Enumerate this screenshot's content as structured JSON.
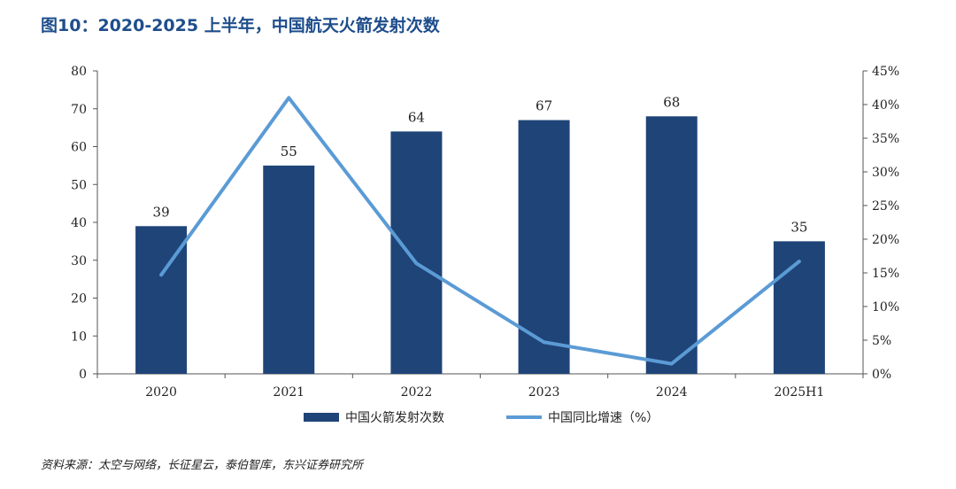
{
  "header": {
    "title": "图10：2020-2025 上半年，中国航天火箭发射次数"
  },
  "footer": {
    "source": "资料来源：太空与网络，长征星云，泰伯智库，东兴证券研究所"
  },
  "colors": {
    "bar": "#1f4478",
    "line": "#5b9bd5",
    "axis": "#555555"
  },
  "chart_data": {
    "type": "bar+line",
    "title": "图10：2020-2025 上半年，中国航天火箭发射次数",
    "categories": [
      "2020",
      "2021",
      "2022",
      "2023",
      "2024",
      "2025H1"
    ],
    "series": [
      {
        "name": "中国火箭发射次数",
        "type": "bar",
        "axis": "left",
        "values": [
          39,
          55,
          64,
          67,
          68,
          35
        ]
      },
      {
        "name": "中国同比增速（%）",
        "type": "line",
        "axis": "right",
        "values": [
          14.7,
          41.0,
          16.4,
          4.7,
          1.5,
          16.7
        ]
      }
    ],
    "y_left": {
      "min": 0,
      "max": 80,
      "step": 10,
      "ticks": [
        "0",
        "10",
        "20",
        "30",
        "40",
        "50",
        "60",
        "70",
        "80"
      ]
    },
    "y_right": {
      "min": 0,
      "max": 45,
      "step": 5,
      "ticks": [
        "0%",
        "5%",
        "10%",
        "15%",
        "20%",
        "25%",
        "30%",
        "35%",
        "40%",
        "45%"
      ]
    },
    "legend_position": "bottom-center",
    "grid": false
  }
}
